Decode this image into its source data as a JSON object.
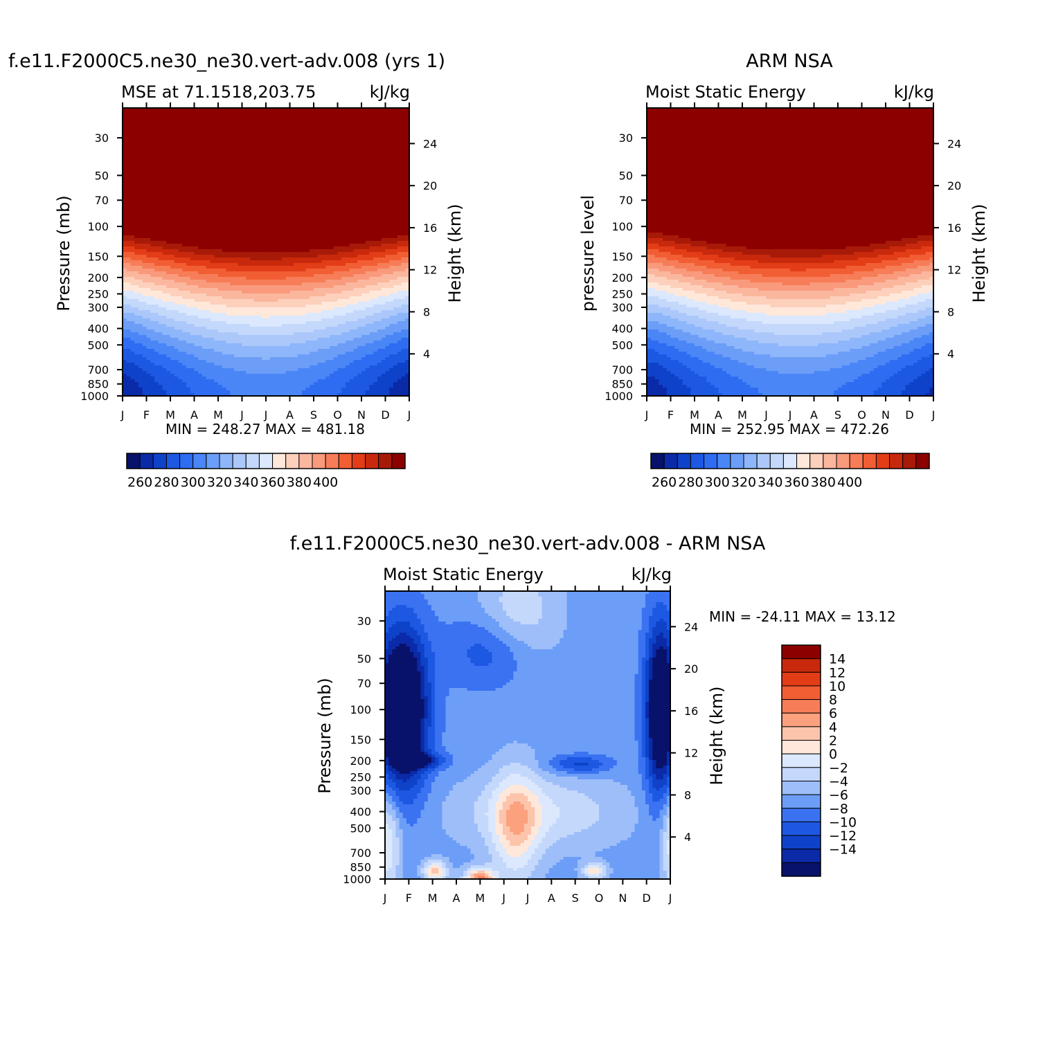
{
  "figure": {
    "panel_a": {
      "title": "f.e11.F2000C5.ne30_ne30.vert-adv.008 (yrs 1)",
      "left_string": "MSE at 71.1518,203.75",
      "right_string": "kJ/kg",
      "y_label": "Pressure (mb)",
      "y2_label": "Height (km)",
      "min_max": "MIN = 248.27 MAX = 481.18"
    },
    "panel_b": {
      "title": "ARM NSA",
      "left_string": "Moist Static Energy",
      "right_string": "kJ/kg",
      "y_label": "pressure level",
      "y2_label": "Height (km)",
      "min_max": "MIN = 252.95 MAX = 472.26"
    },
    "panel_c": {
      "title": "f.e11.F2000C5.ne30_ne30.vert-adv.008 - ARM NSA",
      "left_string": "Moist Static Energy",
      "right_string": "kJ/kg",
      "y_label": "Pressure (mb)",
      "y2_label": "Height (km)",
      "min_max": "MIN = -24.11 MAX =  13.12"
    }
  },
  "chart_data": [
    {
      "type": "heatmap",
      "id": "model",
      "title": "f.e11.F2000C5.ne30_ne30.vert-adv.008 (yrs 1)",
      "variable": "MSE at 71.1518,203.75",
      "units": "kJ/kg",
      "x_labels": [
        "J",
        "F",
        "M",
        "A",
        "M",
        "J",
        "J",
        "A",
        "S",
        "O",
        "N",
        "D",
        "J"
      ],
      "pressure_ticks": [
        30,
        50,
        70,
        100,
        150,
        200,
        250,
        300,
        400,
        500,
        700,
        850,
        1000
      ],
      "pressure_range": [
        20,
        1000
      ],
      "height_ticks": [
        4,
        8,
        12,
        16,
        20,
        24
      ],
      "xlabel": "",
      "ylabel": "Pressure (mb)",
      "y2label": "Height (km)",
      "levels": [
        255,
        260,
        265,
        270,
        275,
        280,
        285,
        290,
        295,
        300,
        305,
        310,
        315,
        320,
        325,
        330,
        335,
        340,
        345,
        350,
        355,
        360,
        365,
        370,
        375,
        380,
        385,
        390,
        395,
        400,
        405,
        410
      ],
      "colors": [
        "#08126a",
        "#0a2aa8",
        "#0e42c8",
        "#1c58e2",
        "#2e6cf2",
        "#4a86f6",
        "#6c9ef8",
        "#8eb6fa",
        "#acc8fb",
        "#c4d8fc",
        "#dbe8fd",
        "#ffe8da",
        "#fdd0bc",
        "#fbb69e",
        "#f99a7c",
        "#f67d58",
        "#f25e34",
        "#e33d18",
        "#c8290c",
        "#a81a08",
        "#8c0000"
      ],
      "cb_labels": [
        "260",
        "280",
        "300",
        "320",
        "340",
        "360",
        "380",
        "400"
      ],
      "min": 248.27,
      "max": 481.18
    },
    {
      "type": "heatmap",
      "id": "obs",
      "title": "ARM NSA",
      "variable": "Moist Static Energy",
      "units": "kJ/kg",
      "x_labels": [
        "J",
        "F",
        "M",
        "A",
        "M",
        "J",
        "J",
        "A",
        "S",
        "O",
        "N",
        "D",
        "J"
      ],
      "pressure_ticks": [
        30,
        50,
        70,
        100,
        150,
        200,
        250,
        300,
        400,
        500,
        700,
        850,
        1000
      ],
      "pressure_range": [
        20,
        1000
      ],
      "height_ticks": [
        4,
        8,
        12,
        16,
        20,
        24
      ],
      "xlabel": "",
      "ylabel": "pressure level",
      "y2label": "Height (km)",
      "levels": [
        255,
        260,
        265,
        270,
        275,
        280,
        285,
        290,
        295,
        300,
        305,
        310,
        315,
        320,
        325,
        330,
        335,
        340,
        345,
        350,
        355,
        360,
        365,
        370,
        375,
        380,
        385,
        390,
        395,
        400,
        405,
        410
      ],
      "colors": [
        "#08126a",
        "#0a2aa8",
        "#0e42c8",
        "#1c58e2",
        "#2e6cf2",
        "#4a86f6",
        "#6c9ef8",
        "#8eb6fa",
        "#acc8fb",
        "#c4d8fc",
        "#dbe8fd",
        "#ffe8da",
        "#fdd0bc",
        "#fbb69e",
        "#f99a7c",
        "#f67d58",
        "#f25e34",
        "#e33d18",
        "#c8290c",
        "#a81a08",
        "#8c0000"
      ],
      "cb_labels": [
        "260",
        "280",
        "300",
        "320",
        "340",
        "360",
        "380",
        "400"
      ],
      "min": 252.95,
      "max": 472.26
    },
    {
      "type": "heatmap",
      "id": "diff",
      "title": "f.e11.F2000C5.ne30_ne30.vert-adv.008 - ARM NSA",
      "variable": "Moist Static Energy",
      "units": "kJ/kg",
      "x_labels": [
        "J",
        "F",
        "M",
        "A",
        "M",
        "J",
        "J",
        "A",
        "S",
        "O",
        "N",
        "D",
        "J"
      ],
      "pressure_ticks": [
        30,
        50,
        70,
        100,
        150,
        200,
        250,
        300,
        400,
        500,
        700,
        850,
        1000
      ],
      "pressure_range": [
        20,
        1000
      ],
      "height_ticks": [
        4,
        8,
        12,
        16,
        20,
        24
      ],
      "xlabel": "",
      "ylabel": "Pressure (mb)",
      "y2label": "Height (km)",
      "levels": [
        -14,
        -12,
        -10,
        -8,
        -6,
        -4,
        -2,
        0,
        2,
        4,
        6,
        8,
        10,
        12,
        14
      ],
      "colors": [
        "#08126a",
        "#0a2aa8",
        "#0e42c8",
        "#1c58e2",
        "#3a72f2",
        "#6c9ef8",
        "#9ebef9",
        "#c4d8fc",
        "#dbe8fd",
        "#ffe8da",
        "#fdc4ac",
        "#fba17e",
        "#f67d58",
        "#f25e34",
        "#e33d18",
        "#c8290c",
        "#8c0000"
      ],
      "cb_labels": [
        "14",
        "12",
        "10",
        "8",
        "6",
        "4",
        "2",
        "0",
        "-2",
        "-4",
        "-6",
        "-8",
        "-10",
        "-12",
        "-14"
      ],
      "min": -24.11,
      "max": 13.12
    }
  ]
}
